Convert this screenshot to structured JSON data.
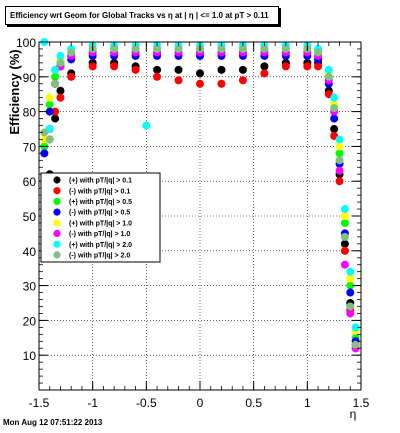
{
  "chart_data": {
    "type": "scatter",
    "title": "Efficiency wrt Geom for Global Tracks vs  η at | η | <= 1.0 at pT > 0.11",
    "xlabel": "η",
    "ylabel": "Efficiency (%)",
    "xlim": [
      -1.5,
      1.5
    ],
    "ylim": [
      0,
      100
    ],
    "xticks": [
      -1.5,
      -1,
      -0.5,
      0,
      0.5,
      1,
      1.5
    ],
    "yticks": [
      10,
      20,
      30,
      40,
      50,
      60,
      70,
      80,
      90,
      100
    ],
    "x_tick_labels": [
      "-1.5",
      "-1",
      "-0.5",
      "0",
      "0.5",
      "1",
      "1.5"
    ],
    "y_tick_labels": [
      "10",
      "20",
      "30",
      "40",
      "50",
      "60",
      "70",
      "80",
      "90",
      "100"
    ],
    "grid": true,
    "legend_position": "middle-left",
    "series": [
      {
        "name": "(+) with pT/|q| > 0.1",
        "color": "#000000",
        "x": [
          -1.45,
          -1.4,
          -1.35,
          -1.3,
          -1.2,
          -1.0,
          -0.8,
          -0.6,
          -0.4,
          -0.2,
          0.0,
          0.2,
          0.4,
          0.6,
          0.8,
          1.0,
          1.1,
          1.2,
          1.25,
          1.3,
          1.35,
          1.4,
          1.45
        ],
        "y": [
          52,
          62,
          78,
          86,
          91,
          94,
          94,
          93,
          92,
          92,
          91,
          92,
          92,
          93,
          94,
          94,
          94,
          86,
          75,
          62,
          42,
          25,
          13
        ]
      },
      {
        "name": "(-) with pT/|q| > 0.1",
        "color": "#ff0000",
        "x": [
          -1.45,
          -1.4,
          -1.35,
          -1.3,
          -1.2,
          -1.0,
          -0.8,
          -0.6,
          -0.4,
          -0.2,
          0.0,
          0.2,
          0.4,
          0.6,
          0.8,
          1.0,
          1.1,
          1.2,
          1.25,
          1.3,
          1.35,
          1.4,
          1.45
        ],
        "y": [
          55,
          72,
          80,
          84,
          90,
          93,
          93,
          92,
          90,
          89,
          88,
          88,
          89,
          91,
          93,
          93,
          93,
          85,
          73,
          60,
          40,
          23,
          12
        ]
      },
      {
        "name": "(+) with pT/|q| > 0.5",
        "color": "#00ff00",
        "x": [
          -1.45,
          -1.4,
          -1.35,
          -1.3,
          -1.2,
          -1.0,
          -0.8,
          -0.6,
          -0.4,
          -0.2,
          0.0,
          0.2,
          0.4,
          0.6,
          0.8,
          1.0,
          1.1,
          1.2,
          1.25,
          1.3,
          1.35,
          1.4,
          1.45
        ],
        "y": [
          70,
          82,
          90,
          94,
          96,
          97,
          97,
          97,
          97,
          97,
          97,
          97,
          97,
          97,
          97,
          97,
          96,
          90,
          80,
          68,
          48,
          30,
          15
        ]
      },
      {
        "name": "(-) with pT/|q| > 0.5",
        "color": "#0000ff",
        "x": [
          -1.45,
          -1.4,
          -1.35,
          -1.3,
          -1.2,
          -1.0,
          -0.8,
          -0.6,
          -0.4,
          -0.2,
          0.0,
          0.2,
          0.4,
          0.6,
          0.8,
          1.0,
          1.1,
          1.2,
          1.25,
          1.3,
          1.35,
          1.4,
          1.45
        ],
        "y": [
          68,
          80,
          88,
          93,
          95,
          96,
          96,
          96,
          96,
          96,
          96,
          96,
          96,
          96,
          96,
          96,
          95,
          88,
          78,
          65,
          45,
          28,
          14
        ]
      },
      {
        "name": "(+) with pT/|q| > 1.0",
        "color": "#ffff00",
        "x": [
          -1.45,
          -1.4,
          -1.35,
          -1.3,
          -1.2,
          -1.0,
          -0.8,
          -0.6,
          -0.4,
          -0.2,
          0.0,
          0.2,
          0.4,
          0.6,
          0.8,
          1.0,
          1.1,
          1.2,
          1.25,
          1.3,
          1.35,
          1.4,
          1.45
        ],
        "y": [
          72,
          84,
          92,
          95,
          97,
          98,
          98,
          98,
          98,
          98,
          98,
          98,
          98,
          98,
          98,
          98,
          97,
          91,
          82,
          70,
          50,
          32,
          17
        ]
      },
      {
        "name": "(-) with pT/|q| > 1.0",
        "color": "#ff00ff",
        "x": [
          -1.45,
          -1.4,
          -1.35,
          -1.3,
          -1.2,
          -1.0,
          -0.8,
          -0.6,
          -0.4,
          -0.2,
          0.0,
          0.2,
          0.4,
          0.6,
          0.8,
          1.0,
          1.1,
          1.2,
          1.25,
          1.3,
          1.35,
          1.4,
          1.45
        ],
        "y": [
          43,
          75,
          88,
          93,
          96,
          97,
          97,
          97,
          97,
          97,
          97,
          97,
          97,
          97,
          97,
          97,
          96,
          89,
          80,
          63,
          36,
          22,
          12
        ]
      },
      {
        "name": "(+) with pT/|q| > 2.0",
        "color": "#00ffff",
        "x": [
          -1.45,
          -1.4,
          -1.35,
          -1.3,
          -1.2,
          -1.0,
          -0.8,
          -0.6,
          -0.5,
          -0.4,
          -0.2,
          0.0,
          0.2,
          0.4,
          0.6,
          0.8,
          1.0,
          1.1,
          1.2,
          1.25,
          1.3,
          1.35,
          1.4,
          1.45
        ],
        "y": [
          100,
          75,
          92,
          96,
          98,
          99,
          99,
          99,
          76,
          99,
          99,
          99,
          99,
          99,
          99,
          99,
          99,
          98,
          92,
          84,
          72,
          52,
          34,
          18
        ]
      },
      {
        "name": "(-) with pT/|q| > 2.0",
        "color": "#80c080",
        "x": [
          -1.45,
          -1.4,
          -1.35,
          -1.3,
          -1.2,
          -1.0,
          -0.8,
          -0.6,
          -0.4,
          -0.2,
          0.0,
          0.2,
          0.4,
          0.6,
          0.8,
          1.0,
          1.1,
          1.2,
          1.25,
          1.3,
          1.35,
          1.4,
          1.45
        ],
        "y": [
          74,
          72,
          88,
          94,
          97,
          98,
          98,
          98,
          98,
          98,
          98,
          98,
          98,
          98,
          98,
          98,
          97,
          90,
          81,
          66,
          44,
          24,
          13
        ]
      }
    ]
  },
  "footer": {
    "timestamp": "Mon Aug 12 07:51:22 2013"
  }
}
